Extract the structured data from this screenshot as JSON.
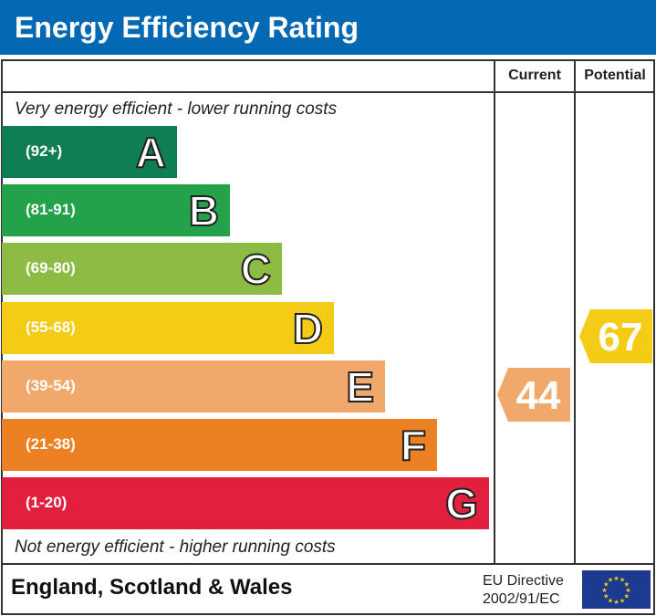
{
  "title": "Energy Efficiency Rating",
  "columns": {
    "current": "Current",
    "potential": "Potential"
  },
  "top_note": "Very energy efficient - lower running costs",
  "bottom_note": "Not energy efficient - higher running costs",
  "footer": {
    "region": "England, Scotland & Wales",
    "directive_line1": "EU Directive",
    "directive_line2": "2002/91/EC"
  },
  "chart_data": {
    "type": "bar",
    "bands": [
      {
        "letter": "A",
        "range": "(92+)",
        "color": "#0f7f53"
      },
      {
        "letter": "B",
        "range": "(81-91)",
        "color": "#23a24a"
      },
      {
        "letter": "C",
        "range": "(69-80)",
        "color": "#8cbc43"
      },
      {
        "letter": "D",
        "range": "(55-68)",
        "color": "#f4cb15"
      },
      {
        "letter": "E",
        "range": "(39-54)",
        "color": "#f1a96b"
      },
      {
        "letter": "F",
        "range": "(21-38)",
        "color": "#ec8123"
      },
      {
        "letter": "G",
        "range": "(1-20)",
        "color": "#e0203d"
      }
    ],
    "current": {
      "value": "44",
      "band": "E",
      "color": "#f1a96b"
    },
    "potential": {
      "value": "67",
      "band": "D",
      "color": "#f4cb15"
    }
  },
  "header_color": "#0468b3"
}
